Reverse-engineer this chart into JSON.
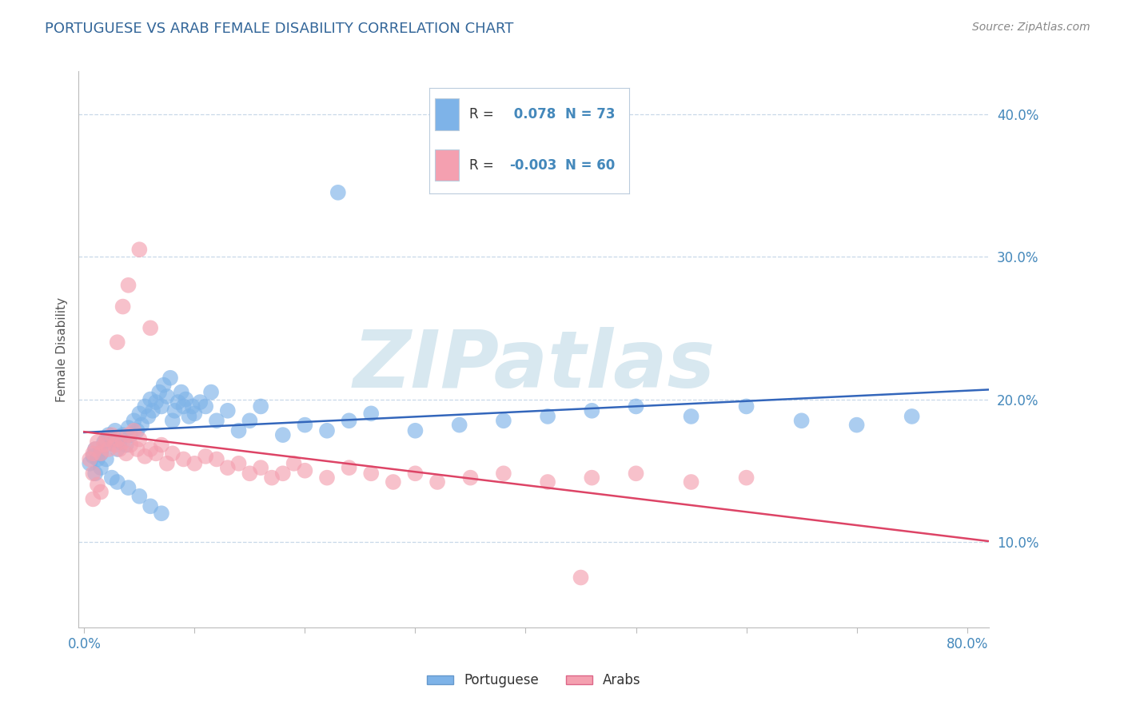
{
  "title": "PORTUGUESE VS ARAB FEMALE DISABILITY CORRELATION CHART",
  "source": "Source: ZipAtlas.com",
  "ylabel": "Female Disability",
  "xlim": [
    -0.005,
    0.82
  ],
  "ylim": [
    0.04,
    0.43
  ],
  "ytick_positions": [
    0.1,
    0.2,
    0.3,
    0.4
  ],
  "ytick_labels": [
    "10.0%",
    "20.0%",
    "30.0%",
    "40.0%"
  ],
  "portuguese_R": 0.078,
  "portuguese_N": 73,
  "arab_R": -0.003,
  "arab_N": 60,
  "portuguese_color": "#7EB3E8",
  "arab_color": "#F4A0B0",
  "portuguese_line_color": "#3366BB",
  "arab_line_color": "#DD4466",
  "background_color": "#FFFFFF",
  "title_color": "#336699",
  "axis_color": "#4488BB",
  "grid_color": "#C8D8E8",
  "watermark_color": "#D8E8F0",
  "legend_text_dark": "#333333",
  "legend_box_edge": "#BBCCDD",
  "portuguese_x": [
    0.005,
    0.008,
    0.01,
    0.012,
    0.015,
    0.018,
    0.02,
    0.022,
    0.025,
    0.028,
    0.03,
    0.032,
    0.035,
    0.038,
    0.04,
    0.042,
    0.045,
    0.048,
    0.05,
    0.052,
    0.055,
    0.058,
    0.06,
    0.062,
    0.065,
    0.068,
    0.07,
    0.072,
    0.075,
    0.078,
    0.08,
    0.082,
    0.085,
    0.088,
    0.09,
    0.092,
    0.095,
    0.098,
    0.1,
    0.105,
    0.11,
    0.115,
    0.12,
    0.13,
    0.14,
    0.15,
    0.16,
    0.18,
    0.2,
    0.22,
    0.24,
    0.26,
    0.3,
    0.34,
    0.38,
    0.42,
    0.46,
    0.5,
    0.55,
    0.6,
    0.65,
    0.7,
    0.75,
    0.23,
    0.01,
    0.015,
    0.02,
    0.025,
    0.03,
    0.04,
    0.05,
    0.06,
    0.07
  ],
  "portuguese_y": [
    0.155,
    0.16,
    0.165,
    0.158,
    0.162,
    0.17,
    0.168,
    0.175,
    0.172,
    0.178,
    0.165,
    0.17,
    0.175,
    0.168,
    0.18,
    0.175,
    0.185,
    0.178,
    0.19,
    0.182,
    0.195,
    0.188,
    0.2,
    0.192,
    0.198,
    0.205,
    0.195,
    0.21,
    0.202,
    0.215,
    0.185,
    0.192,
    0.198,
    0.205,
    0.195,
    0.2,
    0.188,
    0.195,
    0.19,
    0.198,
    0.195,
    0.205,
    0.185,
    0.192,
    0.178,
    0.185,
    0.195,
    0.175,
    0.182,
    0.178,
    0.185,
    0.19,
    0.178,
    0.182,
    0.185,
    0.188,
    0.192,
    0.195,
    0.188,
    0.195,
    0.185,
    0.182,
    0.188,
    0.345,
    0.148,
    0.152,
    0.158,
    0.145,
    0.142,
    0.138,
    0.132,
    0.125,
    0.12
  ],
  "arab_x": [
    0.005,
    0.008,
    0.01,
    0.012,
    0.015,
    0.018,
    0.02,
    0.022,
    0.025,
    0.028,
    0.03,
    0.032,
    0.035,
    0.038,
    0.04,
    0.042,
    0.045,
    0.048,
    0.05,
    0.055,
    0.06,
    0.065,
    0.07,
    0.075,
    0.08,
    0.09,
    0.1,
    0.11,
    0.12,
    0.13,
    0.14,
    0.15,
    0.16,
    0.17,
    0.18,
    0.19,
    0.2,
    0.22,
    0.24,
    0.26,
    0.28,
    0.3,
    0.32,
    0.35,
    0.38,
    0.42,
    0.46,
    0.5,
    0.55,
    0.6,
    0.05,
    0.04,
    0.035,
    0.06,
    0.03,
    0.008,
    0.012,
    0.015,
    0.008,
    0.45
  ],
  "arab_y": [
    0.158,
    0.162,
    0.165,
    0.17,
    0.162,
    0.168,
    0.172,
    0.165,
    0.175,
    0.168,
    0.172,
    0.165,
    0.17,
    0.162,
    0.175,
    0.168,
    0.178,
    0.165,
    0.172,
    0.16,
    0.165,
    0.162,
    0.168,
    0.155,
    0.162,
    0.158,
    0.155,
    0.16,
    0.158,
    0.152,
    0.155,
    0.148,
    0.152,
    0.145,
    0.148,
    0.155,
    0.15,
    0.145,
    0.152,
    0.148,
    0.142,
    0.148,
    0.142,
    0.145,
    0.148,
    0.142,
    0.145,
    0.148,
    0.142,
    0.145,
    0.305,
    0.28,
    0.265,
    0.25,
    0.24,
    0.148,
    0.14,
    0.135,
    0.13,
    0.075
  ]
}
